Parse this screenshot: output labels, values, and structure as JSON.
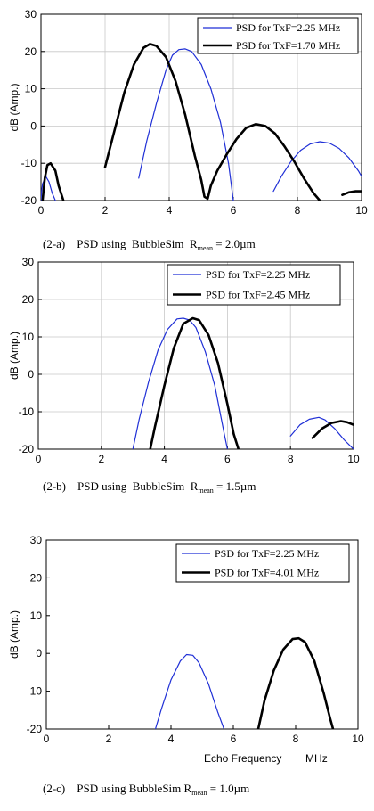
{
  "chart_data": [
    {
      "type": "line",
      "ylabel": "dB (Amp.)",
      "xlabel": "",
      "xlim": [
        0,
        10
      ],
      "ylim": [
        -20,
        30
      ],
      "xticks": [
        0,
        2,
        4,
        6,
        8,
        10
      ],
      "yticks": [
        -20,
        -10,
        0,
        10,
        20,
        30
      ],
      "grid": true,
      "legend_position": "top-right",
      "caption": {
        "prefix": "(2-a)    PSD using  BubbleSim  R",
        "sub": "mean",
        "suffix": " = 2.0µm"
      },
      "series": [
        {
          "name": "PSD for TxF=2.25 MHz",
          "color": "#1f2fd6",
          "width": 1.2,
          "x": [
            0.0,
            0.02,
            0.05,
            0.15,
            0.25,
            0.35,
            0.45,
            2.9,
            3.05,
            3.3,
            3.6,
            3.9,
            4.1,
            4.3,
            4.5,
            4.7,
            5.0,
            5.3,
            5.6,
            5.85,
            6.0,
            7.1,
            7.25,
            7.5,
            7.8,
            8.1,
            8.4,
            8.7,
            9.0,
            9.3,
            9.6,
            9.9,
            10.0
          ],
          "y": [
            -20,
            -17.5,
            -15.5,
            -13.5,
            -15,
            -18,
            -20,
            -20,
            -14,
            -4,
            6,
            15,
            19,
            20.5,
            20.7,
            20,
            16.5,
            10,
            1,
            -10,
            -20,
            -20,
            -17.5,
            -13.5,
            -9.5,
            -6.5,
            -4.8,
            -4.2,
            -4.6,
            -6,
            -8.5,
            -12,
            -13.5
          ]
        },
        {
          "name": "PSD for TxF=1.70 MHz",
          "color": "#000000",
          "width": 2.6,
          "x": [
            0.05,
            0.12,
            0.2,
            0.3,
            0.45,
            0.55,
            0.7,
            1.8,
            2.0,
            2.3,
            2.6,
            2.9,
            3.2,
            3.4,
            3.6,
            3.9,
            4.2,
            4.5,
            4.8,
            5.0,
            5.1,
            5.2,
            5.3,
            5.5,
            5.8,
            6.1,
            6.4,
            6.7,
            7.0,
            7.3,
            7.6,
            7.9,
            8.2,
            8.5,
            8.7,
            9.2,
            9.4,
            9.6,
            9.8,
            10.0
          ],
          "y": [
            -20,
            -14,
            -10.5,
            -10,
            -12,
            -16,
            -20,
            -20,
            -11,
            -1,
            9,
            16.5,
            21,
            22,
            21.5,
            18.5,
            12,
            3,
            -8,
            -14.5,
            -19,
            -19.5,
            -16,
            -12,
            -7.5,
            -3.5,
            -0.5,
            0.5,
            0,
            -2,
            -5.5,
            -9.5,
            -14,
            -18,
            -20,
            -20,
            -18.5,
            -17.8,
            -17.5,
            -17.5
          ]
        }
      ]
    },
    {
      "type": "line",
      "ylabel": "dB (Amp.)",
      "xlabel": "",
      "xlim": [
        0,
        10
      ],
      "ylim": [
        -20,
        30
      ],
      "xticks": [
        0,
        2,
        4,
        6,
        8,
        10
      ],
      "yticks": [
        -20,
        -10,
        0,
        10,
        20,
        30
      ],
      "grid": true,
      "legend_position": "top-right",
      "caption": {
        "prefix": "(2-b)    PSD using  BubbleSim  R",
        "sub": "mean",
        "suffix": " = 1.5µm"
      },
      "series": [
        {
          "name": "PSD for TxF=2.25 MHz",
          "color": "#1f2fd6",
          "width": 1.2,
          "x": [
            3.0,
            3.2,
            3.5,
            3.8,
            4.1,
            4.4,
            4.6,
            4.8,
            5.0,
            5.3,
            5.6,
            5.9,
            6.0,
            7.8,
            8.0,
            8.3,
            8.6,
            8.9,
            9.1,
            9.4,
            9.7,
            10.0
          ],
          "y": [
            -20,
            -12,
            -2,
            6.5,
            12,
            14.8,
            15,
            14.5,
            12.5,
            6,
            -3,
            -16,
            -20,
            -20,
            -16.5,
            -13.5,
            -12,
            -11.5,
            -12.2,
            -14.5,
            -17.5,
            -20
          ]
        },
        {
          "name": "PSD for TxF=2.45 MHz",
          "color": "#000000",
          "width": 2.6,
          "x": [
            3.55,
            3.7,
            4.0,
            4.3,
            4.6,
            4.9,
            5.1,
            5.4,
            5.7,
            6.0,
            6.2,
            6.35,
            8.4,
            8.7,
            9.0,
            9.3,
            9.6,
            9.8,
            10.0
          ],
          "y": [
            -20,
            -14,
            -3,
            7,
            13.5,
            15,
            14.5,
            10.5,
            3,
            -8,
            -16,
            -20,
            -20,
            -17,
            -14.5,
            -13,
            -12.5,
            -12.8,
            -13.5
          ]
        }
      ]
    },
    {
      "type": "line",
      "ylabel": "dB (Amp.)",
      "xlabel": "Echo Frequency        MHz",
      "xlim": [
        0,
        10
      ],
      "ylim": [
        -20,
        30
      ],
      "xticks": [
        0,
        2,
        4,
        6,
        8,
        10
      ],
      "yticks": [
        -20,
        -10,
        0,
        10,
        20,
        30
      ],
      "grid": false,
      "legend_position": "top-right",
      "caption": {
        "prefix": "(2-c)    PSD using BubbleSim R",
        "sub": "mean",
        "suffix": " = 1.0µm"
      },
      "series": [
        {
          "name": "PSD for TxF=2.25 MHz",
          "color": "#1f2fd6",
          "width": 1.2,
          "x": [
            3.5,
            3.7,
            4.0,
            4.3,
            4.5,
            4.7,
            4.9,
            5.2,
            5.5,
            5.7
          ],
          "y": [
            -20,
            -14.5,
            -7,
            -2,
            -0.3,
            -0.5,
            -2.5,
            -8,
            -15.5,
            -20
          ]
        },
        {
          "name": "PSD for TxF=4.01 MHz",
          "color": "#000000",
          "width": 2.6,
          "x": [
            6.8,
            7.0,
            7.3,
            7.6,
            7.9,
            8.1,
            8.3,
            8.6,
            8.9,
            9.1,
            9.2
          ],
          "y": [
            -20,
            -12.5,
            -4.5,
            1,
            3.8,
            4,
            3,
            -2,
            -10.5,
            -17,
            -20
          ]
        }
      ]
    }
  ]
}
